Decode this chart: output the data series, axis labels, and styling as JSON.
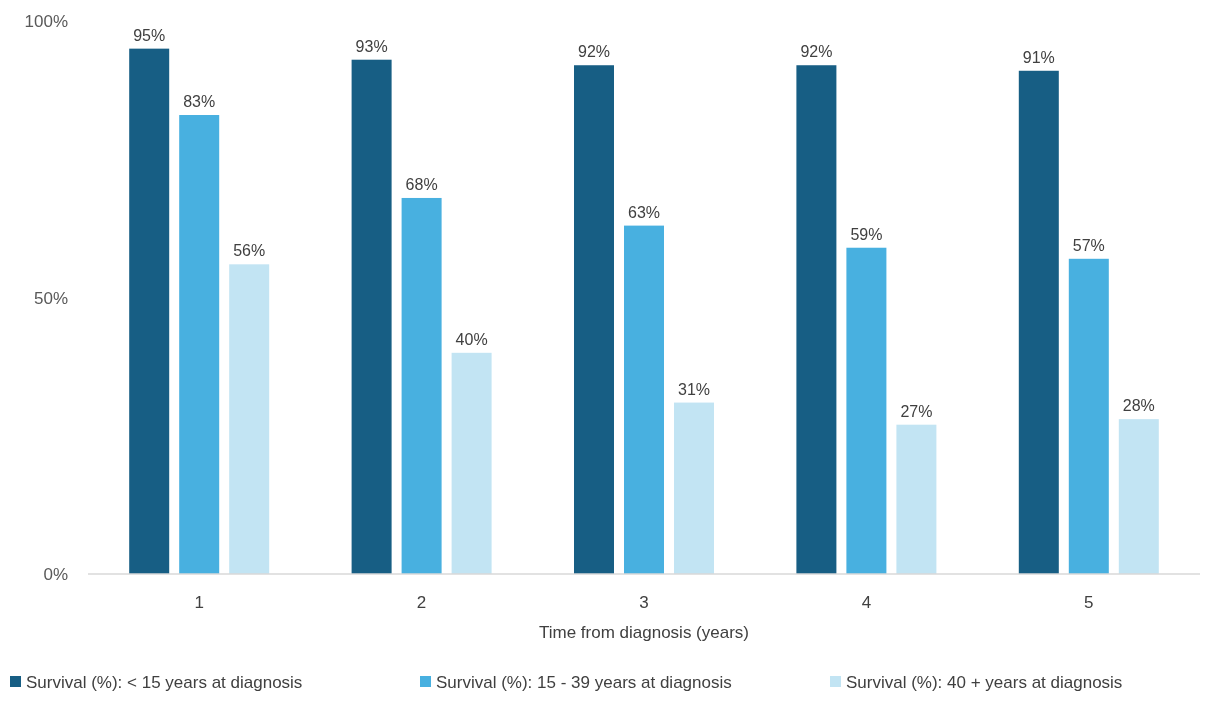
{
  "chart_data": {
    "type": "bar",
    "xlabel": "Time from diagnosis (years)",
    "categories": [
      "1",
      "2",
      "3",
      "4",
      "5"
    ],
    "series": [
      {
        "name": "Survival (%): < 15 years at diagnosis",
        "color": "#175e84",
        "values": [
          95,
          93,
          92,
          92,
          91
        ],
        "value_labels": [
          "95%",
          "93%",
          "92%",
          "92%",
          "91%"
        ]
      },
      {
        "name": "Survival (%): 15 - 39 years at diagnosis",
        "color": "#48b0e0",
        "values": [
          83,
          68,
          63,
          59,
          57
        ],
        "value_labels": [
          "83%",
          "68%",
          "63%",
          "59%",
          "57%"
        ]
      },
      {
        "name": "Survival (%): 40 + years at diagnosis",
        "color": "#c2e4f3",
        "values": [
          56,
          40,
          31,
          27,
          28
        ],
        "value_labels": [
          "56%",
          "40%",
          "31%",
          "27%",
          "28%"
        ]
      }
    ],
    "ylim": [
      0,
      100
    ],
    "yticks": [
      {
        "value": 0,
        "label": "0%"
      },
      {
        "value": 50,
        "label": "50%"
      },
      {
        "value": 100,
        "label": "100%"
      }
    ],
    "legend": "bottom",
    "grid": false
  }
}
